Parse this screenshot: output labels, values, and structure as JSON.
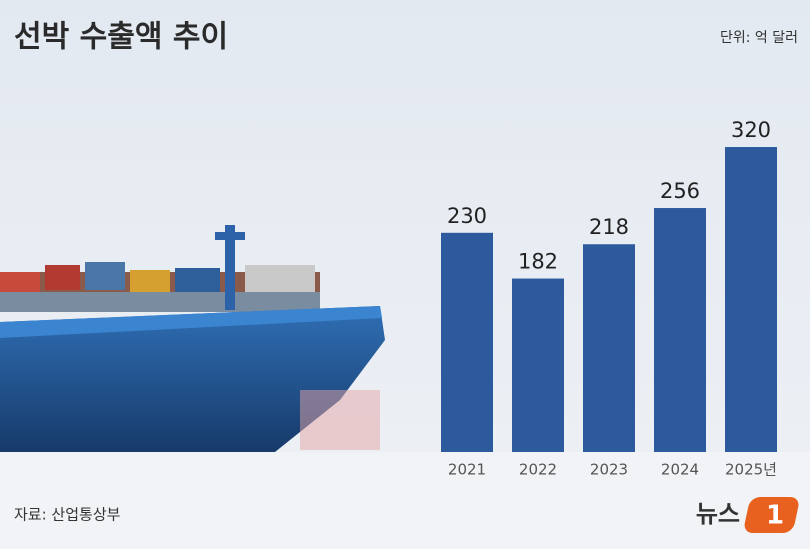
{
  "chart_data": {
    "type": "bar",
    "title": "선박 수출액 추이",
    "unit": "단위: 억 달러",
    "source": "자료: 산업통상부",
    "categories": [
      "2021",
      "2022",
      "2023",
      "2024",
      "2025년"
    ],
    "values": [
      230,
      182,
      218,
      256,
      320
    ],
    "color": "#2c5a9c"
  },
  "logo": {
    "text": "뉴스",
    "mark": "1"
  }
}
